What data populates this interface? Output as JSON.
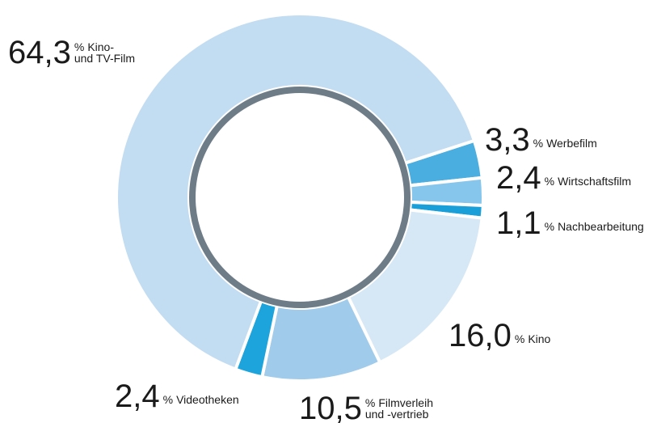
{
  "chart_data": {
    "type": "donut",
    "unit": "%",
    "categories": [
      [
        "Werbefilm"
      ],
      [
        "Wirtschaftsfilm"
      ],
      [
        "Nachbearbeitung"
      ],
      [
        "Kino"
      ],
      [
        "Filmverleih",
        "und -vertrieb"
      ],
      [
        "Videotheken"
      ],
      [
        "Kino-",
        "und TV-Film"
      ]
    ],
    "values": [
      3.3,
      2.4,
      1.1,
      16.0,
      10.5,
      2.4,
      64.3
    ],
    "value_labels": [
      "3,3",
      "2,4",
      "1,1",
      "16,0",
      "10,5",
      "2,4",
      "64,3"
    ],
    "colors": [
      "#4aaee0",
      "#86c6ec",
      "#1a9fd8",
      "#d6e8f5",
      "#a0cbeb",
      "#1ea4dc",
      "#c2dcf1"
    ]
  }
}
